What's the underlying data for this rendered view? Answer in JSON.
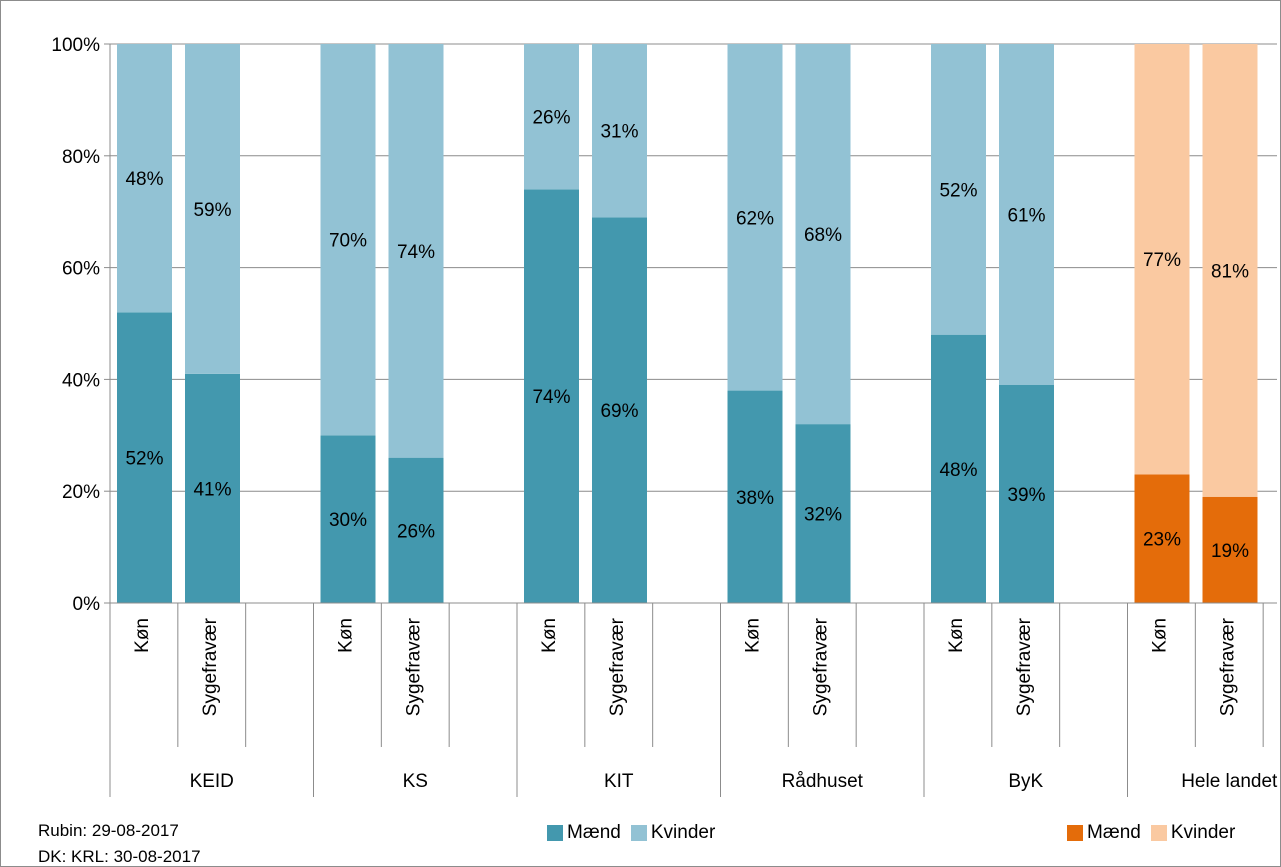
{
  "chart_data": {
    "type": "bar",
    "stacked": true,
    "percent": true,
    "ylim": [
      0,
      100
    ],
    "yticks": [
      "0%",
      "20%",
      "40%",
      "60%",
      "80%",
      "100%"
    ],
    "grid": true,
    "groups": [
      {
        "label": "KEID",
        "categories": [
          "Køn",
          "Sygefravær"
        ]
      },
      {
        "label": "KS",
        "categories": [
          "Køn",
          "Sygefravær"
        ]
      },
      {
        "label": "KIT",
        "categories": [
          "Køn",
          "Sygefravær"
        ]
      },
      {
        "label": "Rådhuset",
        "categories": [
          "Køn",
          "Sygefravær"
        ]
      },
      {
        "label": "ByK",
        "categories": [
          "Køn",
          "Sygefravær"
        ]
      },
      {
        "label": "Hele landet",
        "categories": [
          "Køn",
          "Sygefravær"
        ]
      }
    ],
    "series": [
      {
        "name": "Mænd",
        "values": [
          52,
          41,
          30,
          26,
          74,
          69,
          38,
          32,
          48,
          39,
          23,
          19
        ]
      },
      {
        "name": "Kvinder",
        "values": [
          48,
          59,
          70,
          74,
          26,
          31,
          62,
          68,
          52,
          61,
          77,
          81
        ]
      }
    ],
    "colors": {
      "maend": "#4398ae",
      "kvinder": "#92c2d4",
      "maend_hele_landet": "#e46c0a",
      "kvinder_hele_landet": "#fac9a1"
    }
  },
  "footnotes": {
    "rubin": "Rubin: 29-08-2017",
    "dk": "DK: KRL: 30-08-2017"
  },
  "legend_main": {
    "maend": "Mænd",
    "kvinder": "Kvinder"
  },
  "legend_hele_landet": {
    "maend": "Mænd",
    "kvinder": "Kvinder"
  }
}
